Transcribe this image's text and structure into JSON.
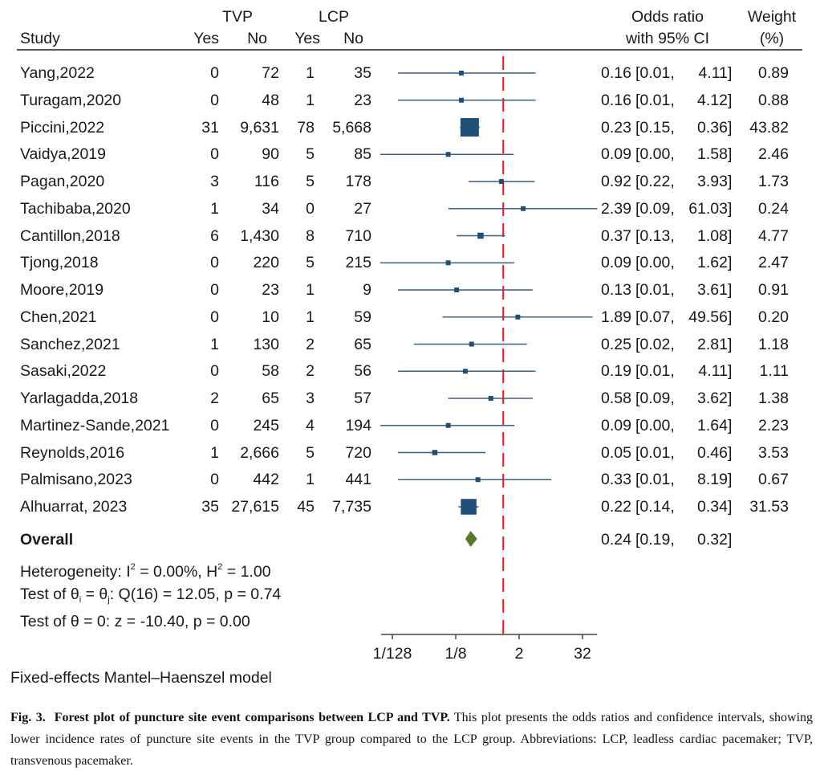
{
  "chart_data": {
    "type": "forest",
    "header": {
      "study": "Study",
      "group1": "TVP",
      "group2": "LCP",
      "yes": "Yes",
      "no": "No",
      "or_line1": "Odds ratio",
      "or_line2": "with 95% CI",
      "weight_line1": "Weight",
      "weight_line2": "(%)"
    },
    "studies": [
      {
        "study": "Yang,2022",
        "tvp_yes": "0",
        "tvp_no": "72",
        "lcp_yes": "1",
        "lcp_no": "35",
        "or": 0.16,
        "lower": 0.01,
        "upper": 4.11,
        "weight": 0.89
      },
      {
        "study": "Turagam,2020",
        "tvp_yes": "0",
        "tvp_no": "48",
        "lcp_yes": "1",
        "lcp_no": "23",
        "or": 0.16,
        "lower": 0.01,
        "upper": 4.12,
        "weight": 0.88
      },
      {
        "study": "Piccini,2022",
        "tvp_yes": "31",
        "tvp_no": "9,631",
        "lcp_yes": "78",
        "lcp_no": "5,668",
        "or": 0.23,
        "lower": 0.15,
        "upper": 0.36,
        "weight": 43.82
      },
      {
        "study": "Vaidya,2019",
        "tvp_yes": "0",
        "tvp_no": "90",
        "lcp_yes": "5",
        "lcp_no": "85",
        "or": 0.09,
        "lower": 0.0,
        "upper": 1.58,
        "weight": 2.46
      },
      {
        "study": "Pagan,2020",
        "tvp_yes": "3",
        "tvp_no": "116",
        "lcp_yes": "5",
        "lcp_no": "178",
        "or": 0.92,
        "lower": 0.22,
        "upper": 3.93,
        "weight": 1.73
      },
      {
        "study": "Tachibaba,2020",
        "tvp_yes": "1",
        "tvp_no": "34",
        "lcp_yes": "0",
        "lcp_no": "27",
        "or": 2.39,
        "lower": 0.09,
        "upper": 61.03,
        "weight": 0.24
      },
      {
        "study": "Cantillon,2018",
        "tvp_yes": "6",
        "tvp_no": "1,430",
        "lcp_yes": "8",
        "lcp_no": "710",
        "or": 0.37,
        "lower": 0.13,
        "upper": 1.08,
        "weight": 4.77
      },
      {
        "study": "Tjong,2018",
        "tvp_yes": "0",
        "tvp_no": "220",
        "lcp_yes": "5",
        "lcp_no": "215",
        "or": 0.09,
        "lower": 0.0,
        "upper": 1.62,
        "weight": 2.47
      },
      {
        "study": "Moore,2019",
        "tvp_yes": "0",
        "tvp_no": "23",
        "lcp_yes": "1",
        "lcp_no": "9",
        "or": 0.13,
        "lower": 0.01,
        "upper": 3.61,
        "weight": 0.91
      },
      {
        "study": "Chen,2021",
        "tvp_yes": "0",
        "tvp_no": "10",
        "lcp_yes": "1",
        "lcp_no": "59",
        "or": 1.89,
        "lower": 0.07,
        "upper": 49.56,
        "weight": 0.2
      },
      {
        "study": "Sanchez,2021",
        "tvp_yes": "1",
        "tvp_no": "130",
        "lcp_yes": "2",
        "lcp_no": "65",
        "or": 0.25,
        "lower": 0.02,
        "upper": 2.81,
        "weight": 1.18
      },
      {
        "study": "Sasaki,2022",
        "tvp_yes": "0",
        "tvp_no": "58",
        "lcp_yes": "2",
        "lcp_no": "56",
        "or": 0.19,
        "lower": 0.01,
        "upper": 4.11,
        "weight": 1.11
      },
      {
        "study": "Yarlagadda,2018",
        "tvp_yes": "2",
        "tvp_no": "65",
        "lcp_yes": "3",
        "lcp_no": "57",
        "or": 0.58,
        "lower": 0.09,
        "upper": 3.62,
        "weight": 1.38
      },
      {
        "study": "Martinez-Sande,2021",
        "tvp_yes": "0",
        "tvp_no": "245",
        "lcp_yes": "4",
        "lcp_no": "194",
        "or": 0.09,
        "lower": 0.0,
        "upper": 1.64,
        "weight": 2.23
      },
      {
        "study": "Reynolds,2016",
        "tvp_yes": "1",
        "tvp_no": "2,666",
        "lcp_yes": "5",
        "lcp_no": "720",
        "or": 0.05,
        "lower": 0.01,
        "upper": 0.46,
        "weight": 3.53
      },
      {
        "study": "Palmisano,2023",
        "tvp_yes": "0",
        "tvp_no": "442",
        "lcp_yes": "1",
        "lcp_no": "441",
        "or": 0.33,
        "lower": 0.01,
        "upper": 8.19,
        "weight": 0.67
      },
      {
        "study": "Alhuarrat, 2023",
        "tvp_yes": "35",
        "tvp_no": "27,615",
        "lcp_yes": "45",
        "lcp_no": "7,735",
        "or": 0.22,
        "lower": 0.14,
        "upper": 0.34,
        "weight": 31.53
      }
    ],
    "overall": {
      "label": "Overall",
      "or": 0.24,
      "lower": 0.19,
      "upper": 0.32
    },
    "stats": {
      "heterogeneity_prefix": "Heterogeneity: I",
      "heterogeneity_mid": " = 0.00%, H",
      "heterogeneity_end": " = 1.00",
      "sup": "2",
      "test1_a": "Test of θ",
      "test1_sub_i": "i",
      "test1_b": " = θ",
      "test1_sub_j": "j",
      "test1_c": ": Q(16) = 12.05, p = 0.74",
      "test2": "Test of θ = 0: z = -10.40, p = 0.00"
    },
    "x_axis": {
      "scale": "log2",
      "ticks": [
        {
          "value": 0.0078125,
          "label": "1/128"
        },
        {
          "value": 0.125,
          "label": "1/8"
        },
        {
          "value": 2,
          "label": "2"
        },
        {
          "value": 32,
          "label": "32"
        }
      ],
      "range": [
        0.0046,
        64
      ],
      "reference_line": 1
    },
    "model_note": "Fixed-effects Mantel–Haenszel model",
    "colors": {
      "marker": "#1f4e79",
      "ci_line": "#3d5f80",
      "diamond": "#5a7a2e",
      "reference": "#e8141c",
      "axis": "#444444"
    }
  },
  "caption": {
    "label": "Fig. 3.",
    "title": "Forest plot of puncture site event comparisons between LCP and TVP.",
    "body": "This plot presents the odds ratios and confidence intervals, showing lower incidence rates of puncture site events in the TVP group compared to the LCP group.  Abbreviations: LCP, leadless cardiac pacemaker; TVP, transvenous pacemaker."
  }
}
